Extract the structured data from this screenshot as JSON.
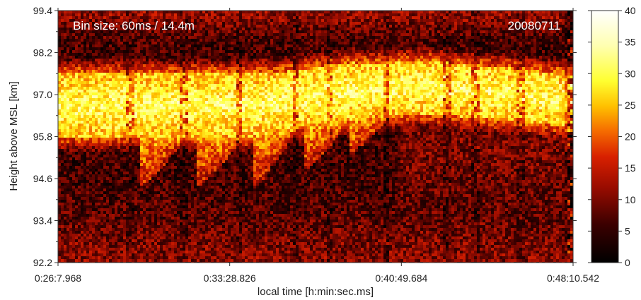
{
  "chart_data": {
    "type": "heatmap",
    "annotation_left": "Bin size: 60ms / 14.4m",
    "annotation_right": "20080711",
    "xlabel": "local time [h:min:sec.ms]",
    "ylabel": "Height above MSL [km]",
    "x_ticks": [
      "0:26:7.968",
      "0:33:28.826",
      "0:40:49.684",
      "0:48:10.542"
    ],
    "y_ticks": [
      "99.4",
      "98.2",
      "97.0",
      "95.8",
      "94.6",
      "93.4",
      "92.2"
    ],
    "y_tick_values": [
      99.4,
      98.2,
      97.0,
      95.8,
      94.6,
      93.4,
      92.2
    ],
    "ylim": [
      92.2,
      99.4
    ],
    "xlim": [
      "0:26:7.968",
      "0:48:10.542"
    ],
    "colorbar": {
      "ticks": [
        "0",
        "5",
        "10",
        "15",
        "20",
        "25",
        "30",
        "35",
        "40"
      ],
      "tick_values": [
        0,
        5,
        10,
        15,
        20,
        25,
        30,
        35,
        40
      ],
      "range": [
        0,
        40
      ]
    },
    "grid": false
  }
}
